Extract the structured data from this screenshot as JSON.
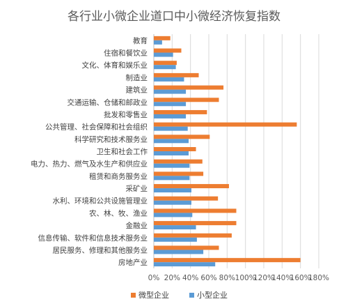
{
  "chart_data": {
    "type": "bar",
    "orientation": "horizontal",
    "title": "各行业小微企业道口中小微经济恢复指数",
    "categories": [
      "教育",
      "住宿和餐饮业",
      "文化、体育和娱乐业",
      "制造业",
      "建筑业",
      "交通运输、仓储和邮政业",
      "批发和零售业",
      "公共管理、社会保障和社会组织",
      "科学研究和技术服务业",
      "卫生和社会工作",
      "电力、热力、燃气及水生产和供应业",
      "租赁和商务服务业",
      "采矿业",
      "水利、环境和公共设施管理业",
      "农、林、牧、渔业",
      "金融业",
      "信息传输、软件和信息技术服务业",
      "居民服务、修理和其他服务业",
      "房地产业"
    ],
    "series": [
      {
        "name": "微型企业",
        "color": "#ed7d31",
        "values": [
          0.18,
          0.3,
          0.25,
          0.49,
          0.76,
          0.71,
          0.58,
          1.56,
          0.61,
          0.46,
          0.53,
          0.54,
          0.82,
          0.7,
          0.9,
          0.9,
          0.85,
          0.71,
          1.6
        ]
      },
      {
        "name": "小型企业",
        "color": "#5b9bd5",
        "values": [
          0.09,
          0.21,
          0.24,
          0.33,
          0.35,
          0.35,
          0.35,
          0.37,
          0.38,
          0.38,
          0.39,
          0.39,
          0.41,
          0.41,
          0.42,
          0.46,
          0.47,
          0.54,
          0.67
        ]
      }
    ],
    "xlim": [
      0,
      1.8
    ],
    "x_ticks": [
      0,
      0.2,
      0.4,
      0.6,
      0.8,
      1.0,
      1.2,
      1.4,
      1.6,
      1.8
    ],
    "x_tick_labels": [
      "0%",
      "20%",
      "40%",
      "60%",
      "80%",
      "100%",
      "120%",
      "140%",
      "160%",
      "180%"
    ],
    "grid": "vertical",
    "legend": "bottom"
  }
}
